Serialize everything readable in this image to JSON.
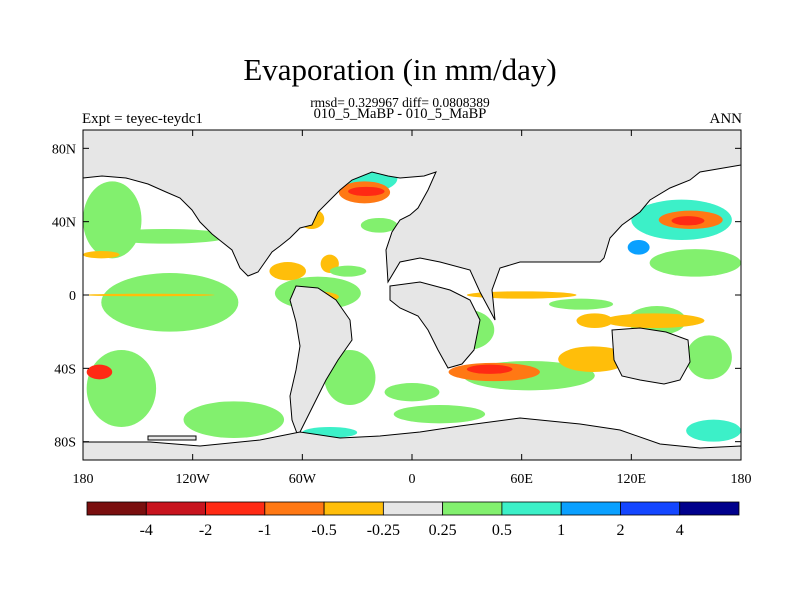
{
  "title": "Evaporation (in mm/day)",
  "stats": "rmsd= 0.329967 diff= 0.0808389",
  "case_line": "010_5_MaBP - 010_5_MaBP",
  "left_label": "Expt = teyec-teydc1",
  "right_label": "ANN",
  "chart_data": {
    "type": "heatmap",
    "projection": "cylindrical-equidistant",
    "xlim": [
      -180,
      180
    ],
    "ylim": [
      -90,
      90
    ],
    "x_ticks": [
      {
        "value": -180,
        "label": "180"
      },
      {
        "value": -120,
        "label": "120W"
      },
      {
        "value": -60,
        "label": "60W"
      },
      {
        "value": 0,
        "label": "0"
      },
      {
        "value": 60,
        "label": "60E"
      },
      {
        "value": 120,
        "label": "120E"
      },
      {
        "value": 180,
        "label": "180"
      }
    ],
    "y_ticks": [
      {
        "value": 80,
        "label": "80N"
      },
      {
        "value": 40,
        "label": "40N"
      },
      {
        "value": 0,
        "label": "0"
      },
      {
        "value": -40,
        "label": "40S"
      },
      {
        "value": -80,
        "label": "80S"
      }
    ],
    "colorbar": {
      "labels": [
        "-4",
        "-2",
        "-1",
        "-0.5",
        "-0.25",
        "0.25",
        "0.5",
        "1",
        "2",
        "4"
      ],
      "colors": [
        "#7a0f0f",
        "#c8141e",
        "#ff2a14",
        "#ff7814",
        "#ffbe0a",
        "#e6e6e6",
        "#82f06e",
        "#3cf0c8",
        "#0aa0ff",
        "#1446ff",
        "#00008c"
      ]
    },
    "land_color": "#e6e6e6",
    "anomaly_regions": [
      {
        "lon": [
          -180,
          -148
        ],
        "lat": [
          20,
          62
        ],
        "level": 0.4
      },
      {
        "lon": [
          -178,
          -140
        ],
        "lat": [
          -72,
          -30
        ],
        "level": 0.4
      },
      {
        "lon": [
          -170,
          -95
        ],
        "lat": [
          -20,
          12
        ],
        "level": 0.4
      },
      {
        "lon": [
          -125,
          -70
        ],
        "lat": [
          -78,
          -58
        ],
        "level": 0.4
      },
      {
        "lon": [
          -170,
          -100
        ],
        "lat": [
          28,
          36
        ],
        "level": 0.4
      },
      {
        "lon": [
          -178,
          -164
        ],
        "lat": [
          -46,
          -38
        ],
        "level": -1.5
      },
      {
        "lon": [
          -180,
          -108
        ],
        "lat": [
          -0.7,
          0.7
        ],
        "level": -0.4
      },
      {
        "lon": [
          -180,
          -160
        ],
        "lat": [
          20,
          24
        ],
        "level": -0.4
      },
      {
        "lon": [
          -75,
          -28
        ],
        "lat": [
          -8,
          10
        ],
        "level": 0.4
      },
      {
        "lon": [
          -78,
          -58
        ],
        "lat": [
          8,
          18
        ],
        "level": -0.4
      },
      {
        "lon": [
          -65,
          -40
        ],
        "lat": [
          -4,
          2
        ],
        "level": -0.4
      },
      {
        "lon": [
          -48,
          -20
        ],
        "lat": [
          -60,
          -30
        ],
        "level": 0.4
      },
      {
        "lon": [
          -52,
          -8
        ],
        "lat": [
          55,
          72
        ],
        "level": 0.75
      },
      {
        "lon": [
          -40,
          -12
        ],
        "lat": [
          50,
          62
        ],
        "level": -0.75
      },
      {
        "lon": [
          -35,
          -15
        ],
        "lat": [
          54,
          59
        ],
        "level": -1.5
      },
      {
        "lon": [
          -62,
          -48
        ],
        "lat": [
          36,
          47
        ],
        "level": -0.4
      },
      {
        "lon": [
          -28,
          -8
        ],
        "lat": [
          34,
          42
        ],
        "level": 0.4
      },
      {
        "lon": [
          -75,
          -68
        ],
        "lat": [
          35,
          40
        ],
        "level": 1.5
      },
      {
        "lon": [
          -50,
          -40
        ],
        "lat": [
          12,
          22
        ],
        "level": -0.4
      },
      {
        "lon": [
          -45,
          -25
        ],
        "lat": [
          10,
          16
        ],
        "level": 0.4
      },
      {
        "lon": [
          28,
          100
        ],
        "lat": [
          -52,
          -36
        ],
        "level": 0.4
      },
      {
        "lon": [
          20,
          70
        ],
        "lat": [
          -47,
          -37
        ],
        "level": -0.75
      },
      {
        "lon": [
          30,
          55
        ],
        "lat": [
          -43,
          -38
        ],
        "level": -1.5
      },
      {
        "lon": [
          80,
          118
        ],
        "lat": [
          -42,
          -28
        ],
        "level": -0.4
      },
      {
        "lon": [
          90,
          110
        ],
        "lat": [
          -18,
          -10
        ],
        "level": -0.4
      },
      {
        "lon": [
          75,
          110
        ],
        "lat": [
          -8,
          -2
        ],
        "level": 0.4
      },
      {
        "lon": [
          15,
          45
        ],
        "lat": [
          -30,
          -8
        ],
        "level": 0.4
      },
      {
        "lon": [
          30,
          90
        ],
        "lat": [
          -2,
          2
        ],
        "level": -0.4
      },
      {
        "lon": [
          120,
          175
        ],
        "lat": [
          30,
          52
        ],
        "level": 0.75
      },
      {
        "lon": [
          135,
          170
        ],
        "lat": [
          36,
          46
        ],
        "level": -0.75
      },
      {
        "lon": [
          142,
          160
        ],
        "lat": [
          38,
          43
        ],
        "level": -1.5
      },
      {
        "lon": [
          118,
          130
        ],
        "lat": [
          22,
          30
        ],
        "level": 1.5
      },
      {
        "lon": [
          130,
          180
        ],
        "lat": [
          10,
          25
        ],
        "level": 0.4
      },
      {
        "lon": [
          118,
          150
        ],
        "lat": [
          -22,
          -6
        ],
        "level": 0.4
      },
      {
        "lon": [
          105,
          160
        ],
        "lat": [
          -18,
          -10
        ],
        "level": -0.4
      },
      {
        "lon": [
          150,
          175
        ],
        "lat": [
          -46,
          -22
        ],
        "level": 0.4
      },
      {
        "lon": [
          150,
          180
        ],
        "lat": [
          -80,
          -68
        ],
        "level": 0.75
      },
      {
        "lon": [
          -10,
          40
        ],
        "lat": [
          -70,
          -60
        ],
        "level": 0.4
      },
      {
        "lon": [
          -15,
          15
        ],
        "lat": [
          -58,
          -48
        ],
        "level": 0.4
      },
      {
        "lon": [
          -60,
          -30
        ],
        "lat": [
          -78,
          -72
        ],
        "level": 0.75
      }
    ]
  }
}
